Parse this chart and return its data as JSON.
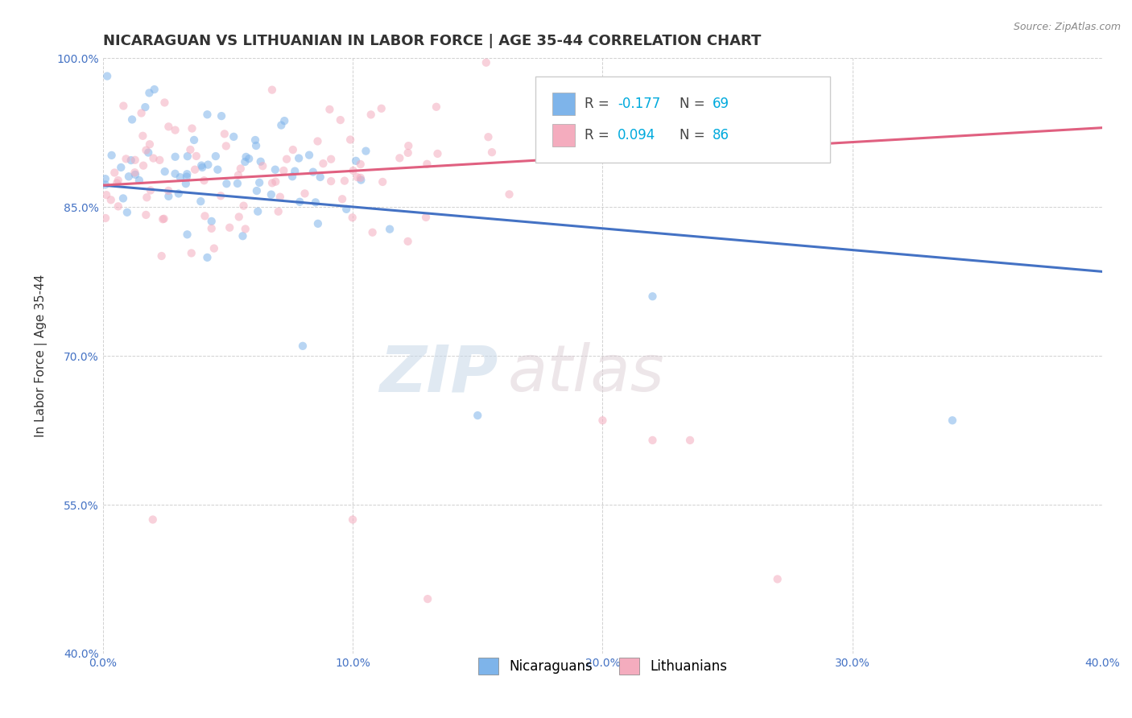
{
  "title": "NICARAGUAN VS LITHUANIAN IN LABOR FORCE | AGE 35-44 CORRELATION CHART",
  "source_text": "Source: ZipAtlas.com",
  "ylabel": "In Labor Force | Age 35-44",
  "xlim": [
    0.0,
    0.4
  ],
  "ylim": [
    0.4,
    1.0
  ],
  "xticks": [
    0.0,
    0.1,
    0.2,
    0.3,
    0.4
  ],
  "yticks": [
    0.4,
    0.55,
    0.7,
    0.85,
    1.0
  ],
  "xtick_labels": [
    "0.0%",
    "10.0%",
    "20.0%",
    "30.0%",
    "40.0%"
  ],
  "ytick_labels": [
    "40.0%",
    "55.0%",
    "70.0%",
    "85.0%",
    "100.0%"
  ],
  "blue_color": "#7EB4EA",
  "pink_color": "#F4ACBE",
  "blue_line_color": "#4472C4",
  "pink_line_color": "#E06080",
  "legend_r1": "-0.177",
  "legend_n1": "69",
  "legend_r2": "0.094",
  "legend_n2": "86",
  "legend_label1": "Nicaraguans",
  "legend_label2": "Lithuanians",
  "watermark": "ZIPatlas",
  "blue_n": 69,
  "pink_n": 86,
  "blue_R": -0.177,
  "pink_R": 0.094,
  "background_color": "#FFFFFF",
  "grid_color": "#CCCCCC",
  "title_fontsize": 13,
  "axis_label_fontsize": 11,
  "tick_fontsize": 10,
  "dot_size": 55,
  "dot_alpha": 0.55,
  "line_width": 2.2,
  "blue_line_y0": 0.872,
  "blue_line_y1": 0.785,
  "pink_line_y0": 0.872,
  "pink_line_y1": 0.93
}
